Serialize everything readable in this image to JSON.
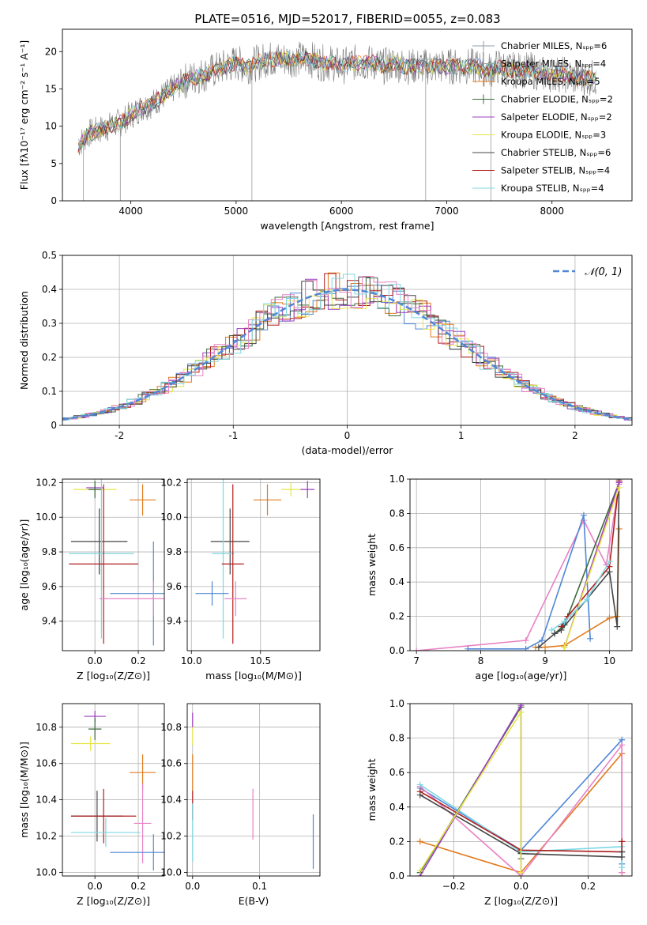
{
  "figure": {
    "title": "PLATE=0516, MJD=52017, FIBERID=0055, z=0.083"
  },
  "chart_data": [
    {
      "id": "spectrum",
      "type": "line",
      "xlabel": "wavelength [Angstrom, rest frame]",
      "ylabel": "Flux [fλ10⁻¹⁷ erg cm⁻² s⁻¹ A⁻¹]",
      "xlim": [
        3350,
        8760
      ],
      "ylim": [
        0,
        23
      ],
      "xticks": [
        4000,
        5000,
        6000,
        7000,
        8000
      ],
      "yticks": [
        0,
        5,
        10,
        15,
        20
      ],
      "legend": "top-right",
      "series": [
        {
          "name": "Chabrier MILES, Nₛₚₚ=6",
          "color": "#8c9bab",
          "marker": "+"
        },
        {
          "name": "Salpeter MILES, Nₛₚₚ=4",
          "color": "#9e9e9e",
          "marker": "+"
        },
        {
          "name": "Kroupa MILES, Nₛₚₚ=5",
          "color": "#e07b1c",
          "marker": "+"
        },
        {
          "name": "Chabrier ELODIE, Nₛₚₚ=2",
          "color": "#3c6a3c",
          "marker": "+"
        },
        {
          "name": "Salpeter ELODIE, Nₛₚₚ=2",
          "color": "#9b3fbf"
        },
        {
          "name": "Kroupa ELODIE, Nₛₚₚ=3",
          "color": "#e6e64a"
        },
        {
          "name": "Chabrier STELIB, Nₛₚₚ=6",
          "color": "#444444"
        },
        {
          "name": "Salpeter STELIB, Nₛₚₚ=4",
          "color": "#b01c1c"
        },
        {
          "name": "Kroupa STELIB, Nₛₚₚ=4",
          "color": "#7fd7e3"
        }
      ],
      "data": [
        {
          "x": 3500,
          "y": 7.5
        },
        {
          "x": 3600,
          "y": 9.0
        },
        {
          "x": 3700,
          "y": 9.5
        },
        {
          "x": 3800,
          "y": 10.0
        },
        {
          "x": 3900,
          "y": 10.5
        },
        {
          "x": 4000,
          "y": 11.5
        },
        {
          "x": 4100,
          "y": 12.5
        },
        {
          "x": 4200,
          "y": 13.0
        },
        {
          "x": 4300,
          "y": 14.0
        },
        {
          "x": 4400,
          "y": 15.0
        },
        {
          "x": 4500,
          "y": 16.0
        },
        {
          "x": 4600,
          "y": 16.5
        },
        {
          "x": 4700,
          "y": 17.0
        },
        {
          "x": 4800,
          "y": 17.5
        },
        {
          "x": 4900,
          "y": 18.0
        },
        {
          "x": 5000,
          "y": 18.5
        },
        {
          "x": 5100,
          "y": 18.0
        },
        {
          "x": 5200,
          "y": 18.5
        },
        {
          "x": 5300,
          "y": 19.0
        },
        {
          "x": 5400,
          "y": 19.0
        },
        {
          "x": 5500,
          "y": 19.0
        },
        {
          "x": 5600,
          "y": 19.0
        },
        {
          "x": 5700,
          "y": 19.0
        },
        {
          "x": 5800,
          "y": 18.5
        },
        {
          "x": 5900,
          "y": 18.5
        },
        {
          "x": 6000,
          "y": 18.0
        },
        {
          "x": 6100,
          "y": 18.5
        },
        {
          "x": 6200,
          "y": 18.5
        },
        {
          "x": 6300,
          "y": 18.5
        },
        {
          "x": 6400,
          "y": 18.0
        },
        {
          "x": 6500,
          "y": 18.5
        },
        {
          "x": 6600,
          "y": 18.0
        },
        {
          "x": 6700,
          "y": 18.0
        },
        {
          "x": 6800,
          "y": 18.0
        },
        {
          "x": 6900,
          "y": 18.0
        },
        {
          "x": 7000,
          "y": 18.0
        },
        {
          "x": 7100,
          "y": 18.0
        },
        {
          "x": 7200,
          "y": 18.0
        },
        {
          "x": 7300,
          "y": 18.0
        },
        {
          "x": 7400,
          "y": 17.5
        },
        {
          "x": 7500,
          "y": 18.0
        },
        {
          "x": 7600,
          "y": 17.5
        },
        {
          "x": 7700,
          "y": 17.5
        },
        {
          "x": 7800,
          "y": 17.5
        },
        {
          "x": 7900,
          "y": 17.0
        },
        {
          "x": 8000,
          "y": 17.0
        },
        {
          "x": 8100,
          "y": 17.0
        },
        {
          "x": 8200,
          "y": 16.5
        },
        {
          "x": 8300,
          "y": 16.5
        },
        {
          "x": 8400,
          "y": 16.5
        }
      ],
      "dips": [
        {
          "x": 3550,
          "y": 0.0
        },
        {
          "x": 3900,
          "y": 0.0
        },
        {
          "x": 5150,
          "y": 0.0
        },
        {
          "x": 6800,
          "y": 0.0
        },
        {
          "x": 7420,
          "y": 0.0
        }
      ]
    },
    {
      "id": "residuals",
      "type": "line",
      "xlabel": "(data-model)/error",
      "ylabel": "Normed distribution",
      "xlim": [
        -2.5,
        2.5
      ],
      "ylim": [
        0,
        0.5
      ],
      "xticks": [
        -2,
        -1,
        0,
        1,
        2
      ],
      "yticks": [
        0.0,
        0.1,
        0.2,
        0.3,
        0.4,
        0.5
      ],
      "grid": true,
      "legend": "top-right",
      "legend_label": "𝒩(0, 1)",
      "gaussian_color": "#4f87d6",
      "hist_colors": [
        "#4f87d6",
        "#e07b1c",
        "#3c6a3c",
        "#b01c1c",
        "#9b3fbf",
        "#e6e64a",
        "#444444",
        "#e882c5",
        "#7fd7e3"
      ],
      "bin_width": 0.1
    },
    {
      "id": "age-vs-z",
      "type": "scatter",
      "xlabel": "Z [log₁₀(Z/Z⊙)]",
      "ylabel": "age  [log₁₀(age/yr)]",
      "xlim": [
        -0.15,
        0.32
      ],
      "ylim": [
        9.23,
        10.22
      ],
      "xticks": [
        "0.0",
        "0.2"
      ],
      "yticks": [
        "9.4",
        "9.6",
        "9.8",
        "10.0",
        "10.2"
      ],
      "grid": true,
      "points": [
        {
          "x": 0.0,
          "y": 10.17,
          "xerr": 0.04,
          "yerr": 0.01,
          "color": "#9b3fbf"
        },
        {
          "x": 0.0,
          "y": 10.16,
          "xerr": 0.1,
          "yerr": 0.01,
          "color": "#e6e64a"
        },
        {
          "x": 0.0,
          "y": 10.16,
          "xerr": 0.03,
          "yerr": 0.05,
          "color": "#3c6a3c"
        },
        {
          "x": 0.22,
          "y": 10.1,
          "xerr": 0.06,
          "yerr": 0.09,
          "color": "#e07b1c"
        },
        {
          "x": 0.02,
          "y": 9.86,
          "xerr": 0.13,
          "yerr": 0.19,
          "color": "#444444"
        },
        {
          "x": 0.03,
          "y": 9.79,
          "xerr": 0.15,
          "yerr": 0.49,
          "color": "#7fd7e3"
        },
        {
          "x": 0.04,
          "y": 9.73,
          "xerr": 0.16,
          "yerr": 0.46,
          "color": "#b01c1c"
        },
        {
          "x": 0.27,
          "y": 9.56,
          "xerr": 0.2,
          "yerr": 0.3,
          "color": "#4f87d6"
        },
        {
          "x": 0.27,
          "y": 9.53,
          "xerr": 0.25,
          "yerr": 0.1,
          "color": "#e882c5"
        }
      ]
    },
    {
      "id": "age-vs-mass",
      "type": "scatter",
      "xlabel": "mass [log₁₀(M/M⊙)]",
      "ylabel": "",
      "xlim": [
        9.97,
        10.93
      ],
      "ylim": [
        9.23,
        10.22
      ],
      "xticks": [
        "10.0",
        "10.5"
      ],
      "yticks": [
        "9.4",
        "9.6",
        "9.8",
        "10.0",
        "10.2"
      ],
      "grid": true,
      "points": [
        {
          "x": 10.55,
          "y": 10.1,
          "xerr": 0.1,
          "yerr": 0.09,
          "color": "#e07b1c"
        },
        {
          "x": 10.72,
          "y": 10.16,
          "xerr": 0.07,
          "yerr": 0.04,
          "color": "#e6e64a"
        },
        {
          "x": 10.84,
          "y": 10.16,
          "xerr": 0.05,
          "yerr": 0.05,
          "color": "#9b3fbf"
        },
        {
          "x": 10.28,
          "y": 9.86,
          "xerr": 0.14,
          "yerr": 0.19,
          "color": "#444444"
        },
        {
          "x": 10.23,
          "y": 9.79,
          "xerr": 0.08,
          "yerr": 0.49,
          "color": "#7fd7e3"
        },
        {
          "x": 10.3,
          "y": 9.73,
          "xerr": 0.08,
          "yerr": 0.46,
          "color": "#b01c1c"
        },
        {
          "x": 10.15,
          "y": 9.56,
          "xerr": 0.12,
          "yerr": 0.07,
          "color": "#4f87d6"
        },
        {
          "x": 10.32,
          "y": 9.53,
          "xerr": 0.08,
          "yerr": 0.1,
          "color": "#e882c5"
        }
      ]
    },
    {
      "id": "weight-vs-age",
      "type": "line",
      "xlabel": "age  [log₁₀(age/yr)]",
      "ylabel": "mass weight",
      "xlim": [
        6.9,
        10.35
      ],
      "ylim": [
        0,
        1
      ],
      "xticks": [
        "7",
        "8",
        "9",
        "10"
      ],
      "yticks": [
        "0.0",
        "0.2",
        "0.4",
        "0.6",
        "0.8",
        "1.0"
      ],
      "grid": true,
      "series": [
        {
          "color": "#e882c5",
          "x": [
            7.0,
            8.7,
            9.6,
            9.95,
            10.15
          ],
          "y": [
            0.0,
            0.06,
            0.76,
            0.5,
            0.97
          ]
        },
        {
          "color": "#4f87d6",
          "x": [
            7.8,
            8.7,
            8.95,
            9.6,
            9.7
          ],
          "y": [
            0.01,
            0.01,
            0.06,
            0.79,
            0.07
          ]
        },
        {
          "color": "#e07b1c",
          "x": [
            8.85,
            9.0,
            9.3,
            10.0,
            10.12,
            10.15
          ],
          "y": [
            0.02,
            0.02,
            0.03,
            0.19,
            0.2,
            0.71
          ]
        },
        {
          "color": "#3c6a3c",
          "x": [
            9.15,
            9.3,
            10.15
          ],
          "y": [
            0.1,
            0.15,
            0.98
          ]
        },
        {
          "color": "#b01c1c",
          "x": [
            9.25,
            9.35,
            10.0,
            10.15
          ],
          "y": [
            0.14,
            0.2,
            0.49,
            0.99
          ]
        },
        {
          "color": "#444444",
          "x": [
            8.9,
            9.15,
            9.25,
            10.0,
            10.12,
            10.15
          ],
          "y": [
            0.02,
            0.1,
            0.12,
            0.46,
            0.14,
            1.0
          ]
        },
        {
          "color": "#9b3fbf",
          "x": [
            9.3,
            10.15
          ],
          "y": [
            0.02,
            0.98
          ]
        },
        {
          "color": "#e6e64a",
          "x": [
            9.3,
            10.15
          ],
          "y": [
            0.02,
            0.95
          ]
        },
        {
          "color": "#7fd7e3",
          "x": [
            9.1,
            9.3,
            9.65,
            10.0
          ],
          "y": [
            0.12,
            0.17,
            0.3,
            0.52
          ]
        }
      ]
    },
    {
      "id": "mass-vs-z",
      "type": "scatter",
      "xlabel": "Z [log₁₀(Z/Z⊙)]",
      "ylabel": "mass [log₁₀(M/M⊙)]",
      "xlim": [
        -0.15,
        0.32
      ],
      "ylim": [
        9.98,
        10.93
      ],
      "xticks": [
        "0.0",
        "0.2"
      ],
      "yticks": [
        "10.0",
        "10.2",
        "10.4",
        "10.6",
        "10.8"
      ],
      "grid": true,
      "points": [
        {
          "x": 0.0,
          "y": 10.86,
          "xerr": 0.05,
          "yerr": 0.03,
          "color": "#9b3fbf"
        },
        {
          "x": 0.0,
          "y": 10.79,
          "xerr": 0.03,
          "yerr": 0.06,
          "color": "#3c6a3c"
        },
        {
          "x": -0.02,
          "y": 10.71,
          "xerr": 0.09,
          "yerr": 0.04,
          "color": "#e6e64a"
        },
        {
          "x": 0.22,
          "y": 10.55,
          "xerr": 0.06,
          "yerr": 0.1,
          "color": "#e07b1c"
        },
        {
          "x": 0.22,
          "y": 10.27,
          "xerr": 0.04,
          "yerr": 0.22,
          "color": "#e882c5"
        },
        {
          "x": 0.01,
          "y": 10.31,
          "xerr": 0.12,
          "yerr": 0.14,
          "color": "#444444"
        },
        {
          "x": 0.04,
          "y": 10.31,
          "xerr": 0.15,
          "yerr": 0.15,
          "color": "#b01c1c"
        },
        {
          "x": 0.05,
          "y": 10.22,
          "xerr": 0.16,
          "yerr": 0.08,
          "color": "#7fd7e3"
        },
        {
          "x": 0.27,
          "y": 10.11,
          "xerr": 0.2,
          "yerr": 0.1,
          "color": "#4f87d6"
        }
      ]
    },
    {
      "id": "mass-vs-ebv",
      "type": "scatter",
      "xlabel": "E(B-V)",
      "ylabel": "",
      "xlim": [
        -0.008,
        0.19
      ],
      "ylim": [
        9.98,
        10.93
      ],
      "xticks": [
        "0.0",
        "0.1"
      ],
      "yticks": [
        "10.0",
        "10.2",
        "10.4",
        "10.6",
        "10.8"
      ],
      "grid": true,
      "points": [
        {
          "x": 0.0,
          "y": 10.84,
          "xerr": 0.0,
          "yerr": 0.04,
          "color": "#9b3fbf"
        },
        {
          "x": 0.0,
          "y": 10.75,
          "xerr": 0.0,
          "yerr": 0.05,
          "color": "#e6e64a"
        },
        {
          "x": 0.0,
          "y": 10.55,
          "xerr": 0.0,
          "yerr": 0.1,
          "color": "#e07b1c"
        },
        {
          "x": 0.0,
          "y": 10.37,
          "xerr": 0.0,
          "yerr": 0.08,
          "color": "#b01c1c"
        },
        {
          "x": 0.0,
          "y": 10.22,
          "xerr": 0.0,
          "yerr": 0.16,
          "color": "#7fd7e3"
        },
        {
          "x": 0.09,
          "y": 10.32,
          "xerr": 0.0,
          "yerr": 0.14,
          "color": "#e882c5"
        },
        {
          "x": 0.18,
          "y": 10.17,
          "xerr": 0.0,
          "yerr": 0.15,
          "color": "#4f87d6"
        }
      ]
    },
    {
      "id": "weight-vs-z",
      "type": "line",
      "xlabel": "Z [log₁₀(Z/Z⊙)]",
      "ylabel": "mass weight",
      "xlim": [
        -0.33,
        0.33
      ],
      "ylim": [
        0,
        1
      ],
      "xticks": [
        "−0.2",
        "0.0",
        "0.2"
      ],
      "yticks": [
        "0.0",
        "0.2",
        "0.4",
        "0.6",
        "0.8",
        "1.0"
      ],
      "grid": true,
      "series": [
        {
          "color": "#e07b1c",
          "x": [
            -0.3,
            0.0,
            0.3,
            0.3
          ],
          "y": [
            0.2,
            0.02,
            0.71,
            0.02
          ]
        },
        {
          "color": "#4f87d6",
          "x": [
            -0.3,
            0.0,
            0.3,
            0.3
          ],
          "y": [
            0.51,
            0.15,
            0.79,
            0.07
          ]
        },
        {
          "color": "#e882c5",
          "x": [
            -0.3,
            0.0,
            0.3,
            0.3
          ],
          "y": [
            0.52,
            0.0,
            0.76,
            0.02
          ]
        },
        {
          "color": "#7fd7e3",
          "x": [
            -0.3,
            0.0,
            0.3,
            0.3
          ],
          "y": [
            0.53,
            0.14,
            0.17,
            0.05
          ]
        },
        {
          "color": "#b01c1c",
          "x": [
            -0.3,
            0.0,
            0.3,
            0.3
          ],
          "y": [
            0.49,
            0.15,
            0.14,
            0.2
          ]
        },
        {
          "color": "#444444",
          "x": [
            -0.3,
            0.0,
            0.3,
            0.3
          ],
          "y": [
            0.47,
            0.13,
            0.11,
            0.14
          ]
        },
        {
          "color": "#3c6a3c",
          "x": [
            -0.3,
            0.0,
            0.0
          ],
          "y": [
            0.02,
            0.98,
            0.1
          ]
        },
        {
          "color": "#9b3fbf",
          "x": [
            -0.3,
            0.0,
            0.0
          ],
          "y": [
            0.0,
            0.99,
            0.02
          ]
        },
        {
          "color": "#e6e64a",
          "x": [
            -0.3,
            0.0,
            0.0
          ],
          "y": [
            0.03,
            0.95,
            0.02
          ]
        }
      ]
    }
  ]
}
